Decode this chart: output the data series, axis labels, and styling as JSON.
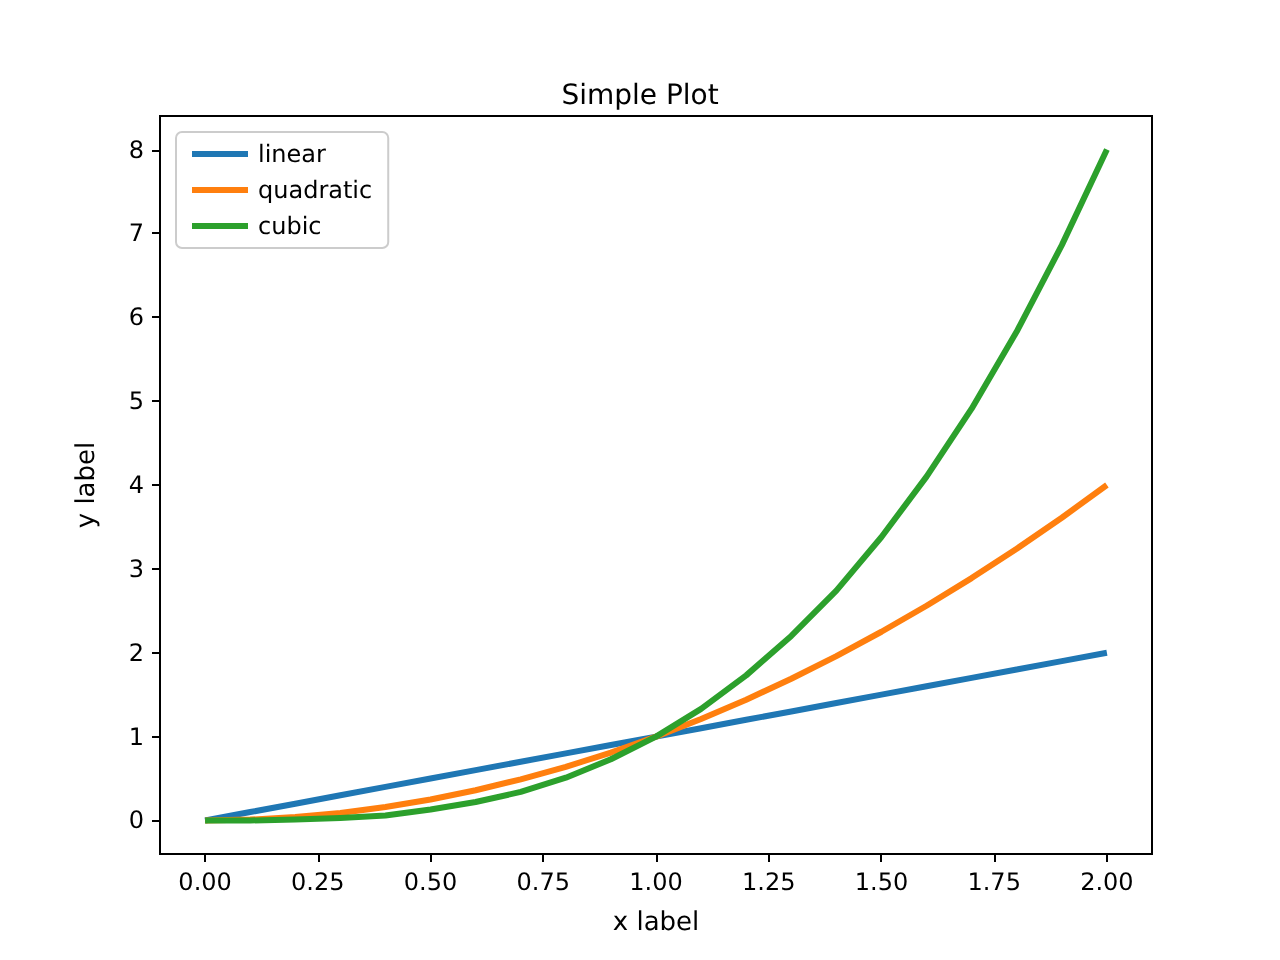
{
  "chart_data": {
    "type": "line",
    "title": "Simple Plot",
    "xlabel": "x label",
    "ylabel": "y label",
    "legend": "top left",
    "x": [
      0,
      0.1,
      0.2,
      0.3,
      0.4,
      0.5,
      0.6,
      0.7,
      0.8,
      0.9,
      1.0,
      1.1,
      1.2,
      1.3,
      1.4,
      1.5,
      1.6,
      1.7,
      1.8,
      1.9,
      2.0
    ],
    "series": [
      {
        "name": "linear",
        "color": "#1f77b4",
        "values": [
          0,
          0.1,
          0.2,
          0.3,
          0.4,
          0.5,
          0.6,
          0.7,
          0.8,
          0.9,
          1.0,
          1.1,
          1.2,
          1.3,
          1.4,
          1.5,
          1.6,
          1.7,
          1.8,
          1.9,
          2.0
        ]
      },
      {
        "name": "quadratic",
        "color": "#ff7f0e",
        "values": [
          0,
          0.01,
          0.04,
          0.09,
          0.16,
          0.25,
          0.36,
          0.49,
          0.64,
          0.81,
          1.0,
          1.21,
          1.44,
          1.69,
          1.96,
          2.25,
          2.56,
          2.89,
          3.24,
          3.61,
          4.0
        ]
      },
      {
        "name": "cubic",
        "color": "#2ca02c",
        "values": [
          0,
          0,
          0.01,
          0.03,
          0.06,
          0.13,
          0.22,
          0.34,
          0.51,
          0.73,
          1.0,
          1.33,
          1.73,
          2.2,
          2.74,
          3.38,
          4.1,
          4.91,
          5.83,
          6.86,
          8.0
        ]
      }
    ],
    "xlim": [
      -0.1,
      2.1
    ],
    "ylim": [
      -0.4,
      8.4
    ],
    "xticks": [
      {
        "value": 0,
        "label": "0.00"
      },
      {
        "value": 0.25,
        "label": "0.25"
      },
      {
        "value": 0.5,
        "label": "0.50"
      },
      {
        "value": 0.75,
        "label": "0.75"
      },
      {
        "value": 1,
        "label": "1.00"
      },
      {
        "value": 1.25,
        "label": "1.25"
      },
      {
        "value": 1.5,
        "label": "1.50"
      },
      {
        "value": 1.75,
        "label": "1.75"
      },
      {
        "value": 2,
        "label": "2.00"
      }
    ],
    "yticks": [
      0,
      1,
      2,
      3,
      4,
      5,
      6,
      7,
      8
    ]
  }
}
